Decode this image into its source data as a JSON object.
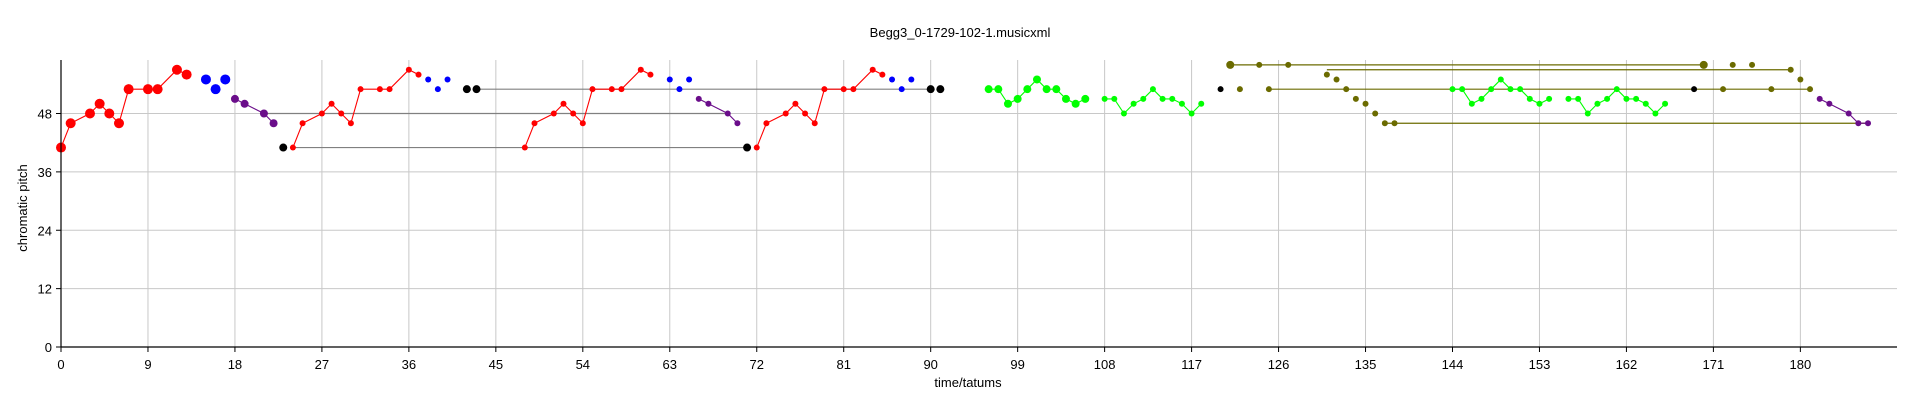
{
  "chart_data": {
    "type": "scatter",
    "title": "Begg3_0-1729-102-1.musicxml",
    "xlabel": "time/tatums",
    "ylabel": "chromatic pitch",
    "xlim": [
      0,
      190
    ],
    "ylim": [
      0,
      59
    ],
    "xticks": [
      0,
      9,
      18,
      27,
      36,
      45,
      54,
      63,
      72,
      81,
      90,
      99,
      108,
      117,
      126,
      135,
      144,
      153,
      162,
      171,
      180
    ],
    "yticks": [
      0,
      12,
      24,
      36,
      48
    ],
    "grid": true,
    "legend": "none",
    "colors": {
      "red": "#ff0000",
      "blue": "#0000ff",
      "purple": "#6a0d8a",
      "black": "#000000",
      "green": "#00ff00",
      "teal": "#007070",
      "olive": "#6b6b00",
      "gray": "#808080"
    },
    "series": [
      {
        "color": "red",
        "connected": true,
        "points": [
          [
            0,
            41,
            5
          ],
          [
            1,
            46,
            5
          ],
          [
            3,
            48,
            5
          ],
          [
            4,
            50,
            5
          ],
          [
            5,
            48,
            5
          ],
          [
            6,
            46,
            5
          ],
          [
            7,
            53,
            5
          ],
          [
            9,
            53,
            5
          ],
          [
            10,
            53,
            5
          ],
          [
            12,
            57,
            5
          ],
          [
            13,
            56,
            5
          ]
        ]
      },
      {
        "color": "blue",
        "connected": false,
        "points": [
          [
            15,
            55,
            5
          ],
          [
            16,
            53,
            5
          ],
          [
            17,
            55,
            5
          ]
        ]
      },
      {
        "color": "purple",
        "connected": true,
        "points": [
          [
            18,
            51,
            4
          ],
          [
            19,
            50,
            4
          ],
          [
            21,
            48,
            4
          ],
          [
            22,
            46,
            4
          ]
        ]
      },
      {
        "color": "red",
        "connected": true,
        "points": [
          [
            24,
            41,
            3
          ],
          [
            25,
            46,
            3
          ],
          [
            27,
            48,
            3
          ],
          [
            28,
            50,
            3
          ],
          [
            29,
            48,
            3
          ],
          [
            30,
            46,
            3
          ],
          [
            31,
            53,
            3
          ],
          [
            33,
            53,
            3
          ],
          [
            34,
            53,
            3
          ],
          [
            36,
            57,
            3
          ],
          [
            37,
            56,
            3
          ]
        ]
      },
      {
        "color": "blue",
        "connected": false,
        "points": [
          [
            38,
            55,
            3
          ],
          [
            39,
            53,
            3
          ],
          [
            40,
            55,
            3
          ]
        ]
      },
      {
        "color": "red",
        "connected": true,
        "points": [
          [
            48,
            41,
            3
          ],
          [
            49,
            46,
            3
          ],
          [
            51,
            48,
            3
          ],
          [
            52,
            50,
            3
          ],
          [
            53,
            48,
            3
          ],
          [
            54,
            46,
            3
          ],
          [
            55,
            53,
            3
          ],
          [
            57,
            53,
            3
          ],
          [
            58,
            53,
            3
          ],
          [
            60,
            57,
            3
          ],
          [
            61,
            56,
            3
          ]
        ]
      },
      {
        "color": "blue",
        "connected": false,
        "points": [
          [
            63,
            55,
            3
          ],
          [
            64,
            53,
            3
          ],
          [
            65,
            55,
            3
          ]
        ]
      },
      {
        "color": "purple",
        "connected": true,
        "points": [
          [
            66,
            51,
            3
          ],
          [
            67,
            50,
            3
          ],
          [
            69,
            48,
            3
          ],
          [
            70,
            46,
            3
          ]
        ]
      },
      {
        "color": "red",
        "connected": true,
        "points": [
          [
            72,
            41,
            3
          ],
          [
            73,
            46,
            3
          ],
          [
            75,
            48,
            3
          ],
          [
            76,
            50,
            3
          ],
          [
            77,
            48,
            3
          ],
          [
            78,
            46,
            3
          ],
          [
            79,
            53,
            3
          ],
          [
            81,
            53,
            3
          ],
          [
            82,
            53,
            3
          ],
          [
            84,
            57,
            3
          ],
          [
            85,
            56,
            3
          ]
        ]
      },
      {
        "color": "blue",
        "connected": false,
        "points": [
          [
            86,
            55,
            3
          ],
          [
            87,
            53,
            3
          ],
          [
            88,
            55,
            3
          ]
        ]
      },
      {
        "color": "green",
        "connected": true,
        "points": [
          [
            96,
            53,
            4
          ],
          [
            97,
            53,
            4
          ],
          [
            98,
            50,
            4
          ],
          [
            99,
            51,
            4
          ],
          [
            100,
            53,
            4
          ],
          [
            101,
            55,
            4
          ],
          [
            102,
            53,
            4
          ],
          [
            103,
            53,
            4
          ],
          [
            104,
            51,
            4
          ],
          [
            105,
            50,
            4
          ],
          [
            106,
            51,
            4
          ]
        ]
      },
      {
        "color": "green",
        "connected": true,
        "points": [
          [
            108,
            51,
            3
          ],
          [
            109,
            51,
            3
          ],
          [
            110,
            48,
            3
          ],
          [
            111,
            50,
            3
          ],
          [
            112,
            51,
            3
          ],
          [
            113,
            53,
            3
          ],
          [
            114,
            51,
            3
          ],
          [
            115,
            51,
            3
          ],
          [
            116,
            50,
            3
          ],
          [
            117,
            48,
            3
          ],
          [
            118,
            50,
            3
          ]
        ]
      },
      {
        "color": "black",
        "connected": false,
        "points": [
          [
            120,
            53,
            3
          ]
        ]
      },
      {
        "color": "olive",
        "connected": false,
        "points": [
          [
            121,
            58,
            4
          ],
          [
            124,
            58,
            3
          ],
          [
            127,
            58,
            3
          ],
          [
            131,
            56,
            3
          ],
          [
            132,
            55,
            3
          ],
          [
            133,
            53,
            3
          ],
          [
            134,
            51,
            3
          ],
          [
            135,
            50,
            3
          ],
          [
            136,
            48,
            3
          ],
          [
            137,
            46,
            3
          ],
          [
            138,
            46,
            3
          ],
          [
            122,
            53,
            3
          ],
          [
            125,
            53,
            3
          ]
        ]
      },
      {
        "color": "green",
        "connected": true,
        "points": [
          [
            144,
            53,
            3
          ],
          [
            145,
            53,
            3
          ],
          [
            146,
            50,
            3
          ],
          [
            147,
            51,
            3
          ],
          [
            148,
            53,
            3
          ],
          [
            149,
            55,
            3
          ],
          [
            150,
            53,
            3
          ],
          [
            151,
            53,
            3
          ],
          [
            152,
            51,
            3
          ],
          [
            153,
            50,
            3
          ],
          [
            154,
            51,
            3
          ]
        ]
      },
      {
        "color": "green",
        "connected": true,
        "points": [
          [
            156,
            51,
            3
          ],
          [
            157,
            51,
            3
          ],
          [
            158,
            48,
            3
          ],
          [
            159,
            50,
            3
          ],
          [
            160,
            51,
            3
          ],
          [
            161,
            53,
            3
          ],
          [
            162,
            51,
            3
          ],
          [
            163,
            51,
            3
          ],
          [
            164,
            50,
            3
          ],
          [
            165,
            48,
            3
          ],
          [
            166,
            50,
            3
          ]
        ]
      },
      {
        "color": "black",
        "connected": false,
        "points": [
          [
            169,
            53,
            3
          ]
        ]
      },
      {
        "color": "olive",
        "connected": false,
        "points": [
          [
            170,
            58,
            4
          ],
          [
            173,
            58,
            3
          ],
          [
            175,
            58,
            3
          ],
          [
            179,
            57,
            3
          ],
          [
            180,
            55,
            3
          ],
          [
            181,
            53,
            3
          ],
          [
            172,
            53,
            3
          ],
          [
            177,
            53,
            3
          ]
        ]
      },
      {
        "color": "purple",
        "connected": true,
        "points": [
          [
            182,
            51,
            3
          ],
          [
            183,
            50,
            3
          ],
          [
            185,
            48,
            3
          ],
          [
            186,
            46,
            3
          ],
          [
            187,
            46,
            3
          ]
        ]
      }
    ],
    "ties": [
      {
        "color": "gray",
        "from": [
          21,
          48
        ],
        "to": [
          69,
          48
        ]
      },
      {
        "color": "gray",
        "from": [
          24,
          41
        ],
        "to": [
          71,
          41
        ]
      },
      {
        "color": "gray",
        "from": [
          43,
          53
        ],
        "to": [
          90,
          53
        ]
      },
      {
        "color": "olive",
        "from": [
          121,
          58
        ],
        "to": [
          170,
          58
        ]
      },
      {
        "color": "olive",
        "from": [
          131,
          57
        ],
        "to": [
          179,
          57
        ]
      },
      {
        "color": "olive",
        "from": [
          125,
          53
        ],
        "to": [
          181,
          53
        ]
      },
      {
        "color": "olive",
        "from": [
          137,
          46
        ],
        "to": [
          187,
          46
        ]
      }
    ],
    "black_pairs": [
      [
        42,
        53
      ],
      [
        43,
        53
      ],
      [
        23,
        41
      ],
      [
        71,
        41
      ],
      [
        90,
        53
      ],
      [
        91,
        53
      ]
    ]
  }
}
